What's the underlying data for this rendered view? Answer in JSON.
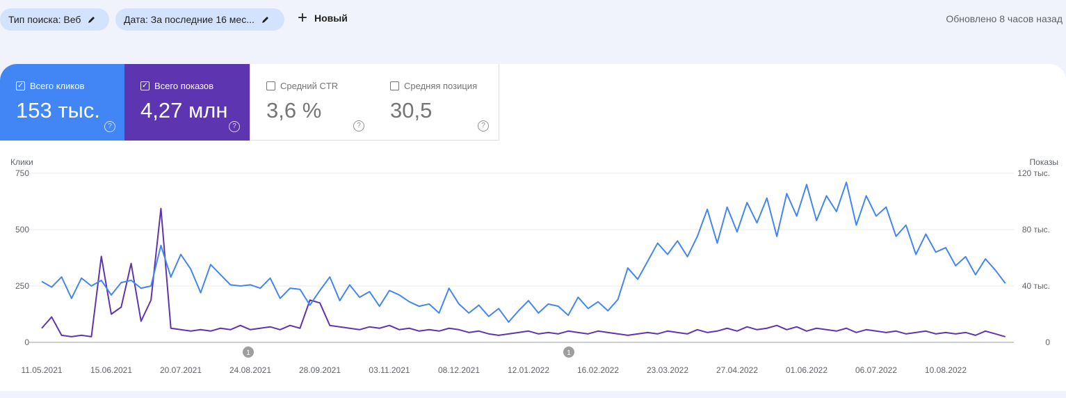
{
  "filters": [
    {
      "label": "Тип поиска: Веб",
      "icon": "pencil-icon"
    },
    {
      "label": "Дата: За последние 16 мес...",
      "icon": "pencil-icon"
    }
  ],
  "new_button": "Новый",
  "updated": "Обновлено 8 часов назад",
  "metrics": [
    {
      "label": "Всего кликов",
      "value": "153 тыс.",
      "checked": true,
      "color": "#4285f4"
    },
    {
      "label": "Всего показов",
      "value": "4,27 млн",
      "checked": true,
      "color": "#5e35b1"
    },
    {
      "label": "Средний CTR",
      "value": "3,6 %",
      "checked": false
    },
    {
      "label": "Средняя позиция",
      "value": "30,5",
      "checked": false
    }
  ],
  "chart_data": {
    "type": "line",
    "start_date": "11.05.2021",
    "step_days": 5,
    "left_axis": {
      "title": "Клики",
      "ticks": [
        "0",
        "250",
        "500",
        "750"
      ],
      "range": [
        0,
        750
      ]
    },
    "right_axis": {
      "title": "Показы",
      "ticks": [
        "0",
        "40 тыс.",
        "80 тыс.",
        "120 тыс."
      ],
      "range": [
        0,
        120000
      ]
    },
    "x_ticks": [
      "11.05.2021",
      "15.06.2021",
      "20.07.2021",
      "24.08.2021",
      "28.09.2021",
      "03.11.2021",
      "08.12.2021",
      "12.01.2022",
      "16.02.2022",
      "23.03.2022",
      "27.04.2022",
      "01.06.2022",
      "06.07.2022",
      "10.08.2022"
    ],
    "annotations": [
      {
        "label": "1",
        "date": "24.08.2021"
      },
      {
        "label": "1",
        "date": "10.02.2022"
      }
    ],
    "series": [
      {
        "name": "Клики",
        "axis": "left",
        "color": "#4285f4",
        "values": [
          270,
          245,
          290,
          195,
          285,
          250,
          275,
          210,
          265,
          275,
          240,
          250,
          430,
          290,
          390,
          325,
          220,
          345,
          300,
          255,
          250,
          255,
          240,
          285,
          195,
          240,
          235,
          165,
          230,
          290,
          185,
          255,
          200,
          225,
          160,
          230,
          210,
          180,
          160,
          170,
          130,
          240,
          170,
          130,
          165,
          115,
          150,
          90,
          140,
          185,
          130,
          170,
          160,
          120,
          200,
          150,
          180,
          140,
          190,
          330,
          280,
          360,
          440,
          390,
          450,
          380,
          470,
          590,
          440,
          600,
          490,
          620,
          530,
          640,
          470,
          660,
          560,
          700,
          540,
          650,
          580,
          710,
          520,
          650,
          560,
          600,
          470,
          520,
          390,
          480,
          400,
          420,
          340,
          380,
          300,
          370,
          320,
          262
        ]
      },
      {
        "name": "Показы",
        "axis": "right",
        "color": "#5e35b1",
        "values": [
          10000,
          18000,
          5000,
          4000,
          5000,
          4000,
          61000,
          20000,
          25000,
          56000,
          15000,
          30000,
          95000,
          10000,
          9000,
          8000,
          9000,
          8000,
          10000,
          9000,
          12000,
          9000,
          10000,
          11000,
          9000,
          12000,
          10000,
          30000,
          28000,
          12000,
          11000,
          10000,
          9000,
          11000,
          10000,
          12000,
          9000,
          10000,
          8000,
          9000,
          8000,
          10000,
          9000,
          7000,
          8000,
          6000,
          5000,
          6000,
          7000,
          8000,
          6000,
          7000,
          6000,
          8000,
          7000,
          6000,
          8000,
          7000,
          6000,
          5000,
          6000,
          7000,
          6000,
          8000,
          7000,
          6000,
          9000,
          7000,
          8000,
          10000,
          8000,
          11000,
          9000,
          10000,
          12000,
          9000,
          11000,
          8000,
          10000,
          9000,
          8000,
          10000,
          7000,
          9000,
          8000,
          7000,
          8000,
          6000,
          7000,
          8000,
          6000,
          7000,
          6000,
          7000,
          5000,
          8000,
          6000,
          4000
        ]
      }
    ]
  }
}
